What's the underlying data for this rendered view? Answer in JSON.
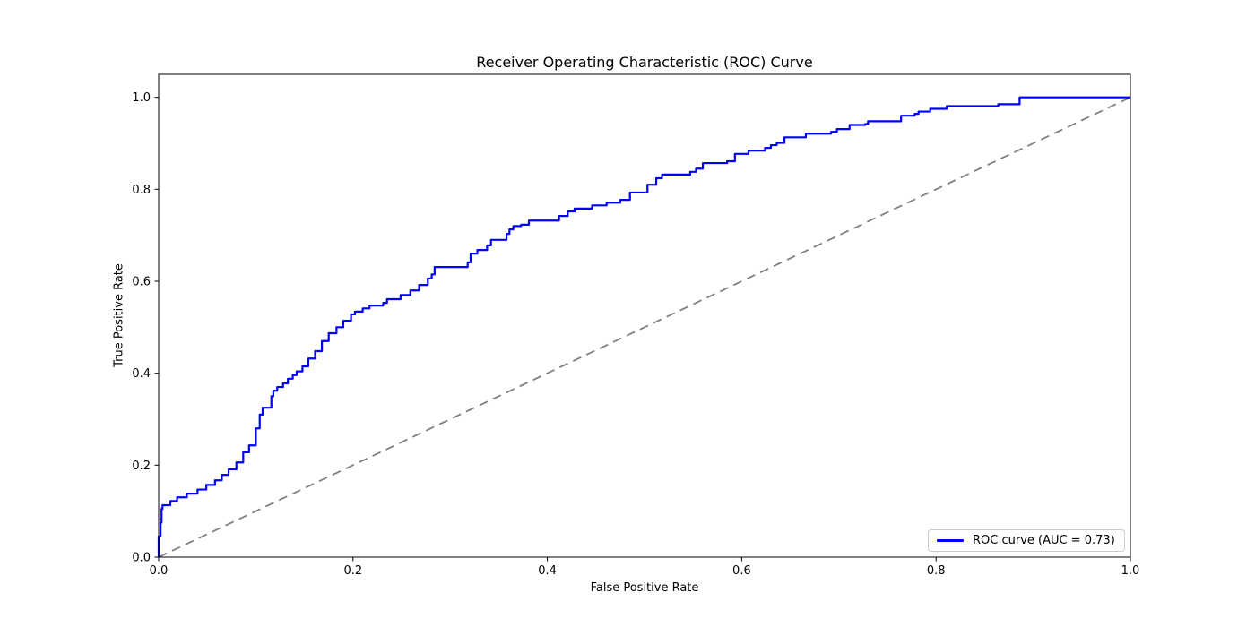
{
  "figure": {
    "background": "#ffffff"
  },
  "chart_data": {
    "type": "line",
    "title": "Receiver Operating Characteristic (ROC) Curve",
    "xlabel": "False Positive Rate",
    "ylabel": "True Positive Rate",
    "xlim": [
      0.0,
      1.0
    ],
    "ylim": [
      0.0,
      1.05
    ],
    "grid": false,
    "auc": 0.73,
    "x_ticks": {
      "values": [
        0.0,
        0.2,
        0.4,
        0.6,
        0.8,
        1.0
      ],
      "labels": [
        "0.0",
        "0.2",
        "0.4",
        "0.6",
        "0.8",
        "1.0"
      ]
    },
    "y_ticks": {
      "values": [
        0.0,
        0.2,
        0.4,
        0.6,
        0.8,
        1.0
      ],
      "labels": [
        "0.0",
        "0.2",
        "0.4",
        "0.6",
        "0.8",
        "1.0"
      ]
    },
    "legend": {
      "position": "lower right",
      "label": "ROC curve (AUC = 0.73)"
    },
    "colors": {
      "curve": "#0000ff",
      "diagonal": "#808080",
      "spine": "#000000",
      "tick_text": "#000000",
      "legend_border": "#cccccc"
    },
    "series": [
      {
        "name": "roc-curve",
        "label": "ROC curve (AUC = 0.73)",
        "style": "step",
        "color": "#0000ff",
        "line_width": 2.2,
        "points": [
          [
            0.0,
            0.0
          ],
          [
            0.002,
            0.045
          ],
          [
            0.003,
            0.075
          ],
          [
            0.004,
            0.105
          ],
          [
            0.012,
            0.113
          ],
          [
            0.019,
            0.122
          ],
          [
            0.029,
            0.13
          ],
          [
            0.04,
            0.138
          ],
          [
            0.049,
            0.147
          ],
          [
            0.058,
            0.157
          ],
          [
            0.065,
            0.167
          ],
          [
            0.072,
            0.179
          ],
          [
            0.08,
            0.191
          ],
          [
            0.087,
            0.206
          ],
          [
            0.093,
            0.228
          ],
          [
            0.1,
            0.243
          ],
          [
            0.104,
            0.28
          ],
          [
            0.107,
            0.31
          ],
          [
            0.116,
            0.325
          ],
          [
            0.118,
            0.35
          ],
          [
            0.122,
            0.362
          ],
          [
            0.128,
            0.37
          ],
          [
            0.133,
            0.378
          ],
          [
            0.138,
            0.388
          ],
          [
            0.142,
            0.396
          ],
          [
            0.148,
            0.404
          ],
          [
            0.154,
            0.415
          ],
          [
            0.161,
            0.432
          ],
          [
            0.168,
            0.448
          ],
          [
            0.175,
            0.47
          ],
          [
            0.183,
            0.487
          ],
          [
            0.19,
            0.5
          ],
          [
            0.198,
            0.514
          ],
          [
            0.202,
            0.528
          ],
          [
            0.21,
            0.534
          ],
          [
            0.217,
            0.541
          ],
          [
            0.231,
            0.547
          ],
          [
            0.235,
            0.553
          ],
          [
            0.249,
            0.561
          ],
          [
            0.259,
            0.57
          ],
          [
            0.268,
            0.58
          ],
          [
            0.277,
            0.592
          ],
          [
            0.281,
            0.606
          ],
          [
            0.284,
            0.615
          ],
          [
            0.318,
            0.631
          ],
          [
            0.321,
            0.641
          ],
          [
            0.328,
            0.66
          ],
          [
            0.338,
            0.668
          ],
          [
            0.342,
            0.678
          ],
          [
            0.358,
            0.69
          ],
          [
            0.361,
            0.703
          ],
          [
            0.365,
            0.713
          ],
          [
            0.373,
            0.72
          ],
          [
            0.381,
            0.723
          ],
          [
            0.412,
            0.732
          ],
          [
            0.421,
            0.742
          ],
          [
            0.428,
            0.752
          ],
          [
            0.446,
            0.758
          ],
          [
            0.461,
            0.765
          ],
          [
            0.475,
            0.771
          ],
          [
            0.485,
            0.777
          ],
          [
            0.503,
            0.793
          ],
          [
            0.512,
            0.81
          ],
          [
            0.518,
            0.824
          ],
          [
            0.547,
            0.832
          ],
          [
            0.553,
            0.838
          ],
          [
            0.56,
            0.845
          ],
          [
            0.585,
            0.857
          ],
          [
            0.593,
            0.861
          ],
          [
            0.607,
            0.877
          ],
          [
            0.624,
            0.884
          ],
          [
            0.63,
            0.89
          ],
          [
            0.636,
            0.896
          ],
          [
            0.644,
            0.901
          ],
          [
            0.666,
            0.913
          ],
          [
            0.692,
            0.921
          ],
          [
            0.698,
            0.925
          ],
          [
            0.711,
            0.931
          ],
          [
            0.727,
            0.94
          ],
          [
            0.73,
            0.942
          ],
          [
            0.764,
            0.948
          ],
          [
            0.778,
            0.96
          ],
          [
            0.782,
            0.964
          ],
          [
            0.794,
            0.969
          ],
          [
            0.811,
            0.975
          ],
          [
            0.864,
            0.981
          ],
          [
            0.886,
            0.985
          ],
          [
            0.941,
            1.0
          ],
          [
            1.0,
            1.0
          ]
        ]
      },
      {
        "name": "chance-diagonal",
        "label": "",
        "style": "dashed",
        "color": "#808080",
        "line_width": 1.8,
        "points": [
          [
            0.0,
            0.0
          ],
          [
            1.0,
            1.0
          ]
        ]
      }
    ]
  }
}
